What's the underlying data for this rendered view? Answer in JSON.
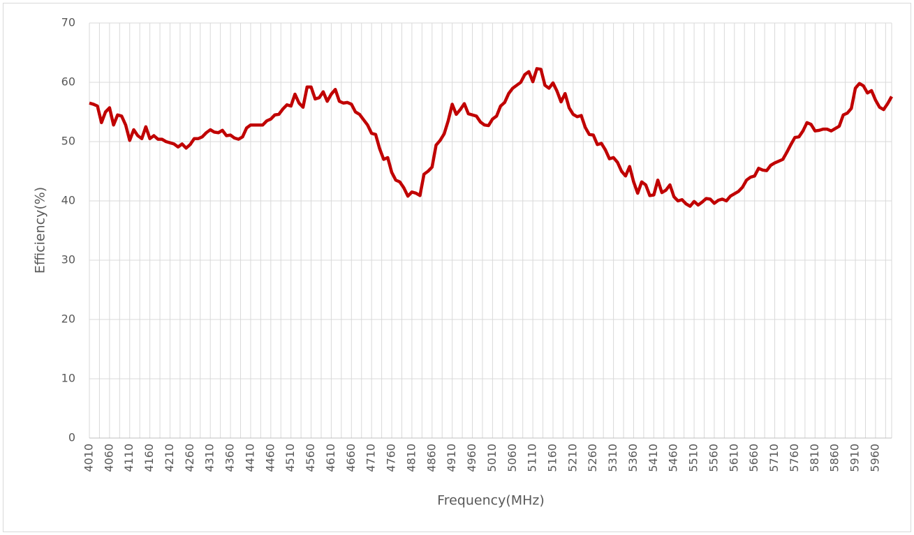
{
  "chart_data": {
    "type": "line",
    "xlabel": "Frequency(MHz)",
    "ylabel": "Efficiency(%)",
    "x": [
      4010,
      4020,
      4030,
      4040,
      4050,
      4060,
      4070,
      4080,
      4090,
      4100,
      4110,
      4120,
      4130,
      4140,
      4150,
      4160,
      4170,
      4180,
      4190,
      4200,
      4210,
      4220,
      4230,
      4240,
      4250,
      4260,
      4270,
      4280,
      4290,
      4300,
      4310,
      4320,
      4330,
      4340,
      4350,
      4360,
      4370,
      4380,
      4390,
      4400,
      4410,
      4420,
      4430,
      4440,
      4450,
      4460,
      4470,
      4480,
      4490,
      4500,
      4510,
      4520,
      4530,
      4540,
      4550,
      4560,
      4570,
      4580,
      4590,
      4600,
      4610,
      4620,
      4630,
      4640,
      4650,
      4660,
      4670,
      4680,
      4690,
      4700,
      4710,
      4720,
      4730,
      4740,
      4750,
      4760,
      4770,
      4780,
      4790,
      4800,
      4810,
      4820,
      4830,
      4840,
      4850,
      4860,
      4870,
      4880,
      4890,
      4900,
      4910,
      4920,
      4930,
      4940,
      4950,
      4960,
      4970,
      4980,
      4990,
      5000,
      5010,
      5020,
      5030,
      5040,
      5050,
      5060,
      5070,
      5080,
      5090,
      5100,
      5110,
      5120,
      5130,
      5140,
      5150,
      5160,
      5170,
      5180,
      5190,
      5200,
      5210,
      5220,
      5230,
      5240,
      5250,
      5260,
      5270,
      5280,
      5290,
      5300,
      5310,
      5320,
      5330,
      5340,
      5350,
      5360,
      5370,
      5380,
      5390,
      5400,
      5410,
      5420,
      5430,
      5440,
      5450,
      5460,
      5470,
      5480,
      5490,
      5500,
      5510,
      5520,
      5530,
      5540,
      5550,
      5560,
      5570,
      5580,
      5590,
      5600,
      5610,
      5620,
      5630,
      5640,
      5650,
      5660,
      5670,
      5680,
      5690,
      5700,
      5710,
      5720,
      5730,
      5740,
      5750,
      5760,
      5770,
      5780,
      5790,
      5800,
      5810,
      5820,
      5830,
      5840,
      5850,
      5860,
      5870,
      5880,
      5890,
      5900,
      5910,
      5920,
      5930,
      5940,
      5950,
      5960,
      5970,
      5980,
      5990,
      6000
    ],
    "series": [
      {
        "color": "#c00000",
        "values": [
          56.5,
          56.3,
          56,
          53.2,
          55,
          55.7,
          52.8,
          54.5,
          54.3,
          52.8,
          50.2,
          52,
          51,
          50.5,
          52.5,
          50.5,
          51,
          50.4,
          50.4,
          50,
          49.8,
          49.6,
          49.1,
          49.6,
          48.9,
          49.5,
          50.5,
          50.5,
          50.8,
          51.5,
          52,
          51.6,
          51.5,
          51.9,
          51,
          51.1,
          50.6,
          50.4,
          50.8,
          52.3,
          52.8,
          52.8,
          52.8,
          52.8,
          53.5,
          53.8,
          54.5,
          54.6,
          55.5,
          56.2,
          56,
          58,
          56.5,
          55.8,
          59.2,
          59.2,
          57.2,
          57.4,
          58.4,
          56.8,
          58,
          58.8,
          56.8,
          56.5,
          56.6,
          56.3,
          55,
          54.6,
          53.7,
          52.8,
          51.4,
          51.2,
          48.8,
          47,
          47.3,
          44.8,
          43.5,
          43.2,
          42.2,
          40.8,
          41.5,
          41.3,
          40.9,
          44.5,
          45,
          45.7,
          49.4,
          50.2,
          51.3,
          53.5,
          56.3,
          54.6,
          55.4,
          56.4,
          54.7,
          54.5,
          54.3,
          53.3,
          52.8,
          52.7,
          53.8,
          54.3,
          56,
          56.6,
          58.1,
          59,
          59.5,
          60,
          61.3,
          61.8,
          60.1,
          62.3,
          62.2,
          59.5,
          59,
          59.9,
          58.5,
          56.7,
          58.1,
          55.7,
          54.6,
          54.2,
          54.4,
          52.4,
          51.2,
          51.1,
          49.5,
          49.7,
          48.6,
          47.1,
          47.3,
          46.5,
          45,
          44.2,
          45.8,
          43.2,
          41.3,
          43.2,
          42.7,
          40.9,
          41,
          43.5,
          41.4,
          41.8,
          42.7,
          40.7,
          40,
          40.2,
          39.5,
          39.1,
          39.9,
          39.3,
          39.8,
          40.4,
          40.3,
          39.6,
          40.1,
          40.3,
          40,
          40.8,
          41.2,
          41.6,
          42.3,
          43.5,
          44,
          44.2,
          45.5,
          45.2,
          45.1,
          46,
          46.4,
          46.7,
          47,
          48.2,
          49.5,
          50.7,
          50.8,
          51.8,
          53.2,
          52.9,
          51.8,
          51.9,
          52.1,
          52.1,
          51.8,
          52.2,
          52.6,
          54.5,
          54.8,
          55.6,
          59,
          59.8,
          59.4,
          58.2,
          58.6,
          57,
          55.8,
          55.4,
          56.4,
          57.6
        ]
      }
    ],
    "xlim": [
      4010,
      6000
    ],
    "xticks": [
      4010,
      4060,
      4110,
      4160,
      4210,
      4260,
      4310,
      4360,
      4410,
      4460,
      4510,
      4560,
      4610,
      4660,
      4710,
      4760,
      4810,
      4860,
      4910,
      4960,
      5010,
      5060,
      5110,
      5160,
      5210,
      5260,
      5310,
      5360,
      5410,
      5460,
      5510,
      5560,
      5610,
      5660,
      5710,
      5760,
      5810,
      5860,
      5910,
      5960
    ],
    "xgrid": [
      4010,
      4035,
      4060,
      4085,
      4110,
      4135,
      4160,
      4185,
      4210,
      4235,
      4260,
      4285,
      4310,
      4335,
      4360,
      4385,
      4410,
      4435,
      4460,
      4485,
      4510,
      4535,
      4560,
      4585,
      4610,
      4635,
      4660,
      4685,
      4710,
      4735,
      4760,
      4785,
      4810,
      4835,
      4860,
      4885,
      4910,
      4935,
      4960,
      4985,
      5010,
      5035,
      5060,
      5085,
      5110,
      5135,
      5160,
      5185,
      5210,
      5235,
      5260,
      5285,
      5310,
      5335,
      5360,
      5385,
      5410,
      5435,
      5460,
      5485,
      5510,
      5535,
      5560,
      5585,
      5610,
      5635,
      5660,
      5685,
      5710,
      5735,
      5760,
      5785,
      5810,
      5835,
      5860,
      5885,
      5910,
      5935,
      5960,
      5985,
      6000
    ],
    "ylim": [
      0,
      70
    ],
    "yticks": [
      0,
      10,
      20,
      30,
      40,
      50,
      60,
      70
    ],
    "grid": true
  }
}
